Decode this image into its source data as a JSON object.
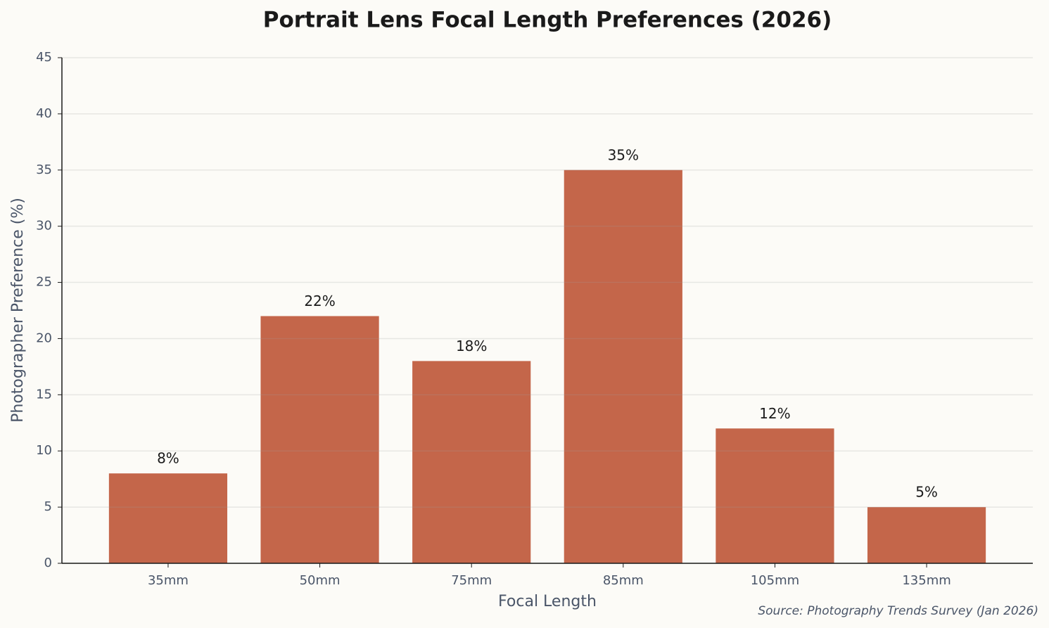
{
  "chart_data": {
    "type": "bar",
    "title": "Portrait Lens Focal Length Preferences (2026)",
    "x_label": "Focal Length",
    "y_label": "Photographer Preference (%)",
    "source": "Source: Photography Trends Survey (Jan 2026)",
    "categories": [
      "35mm",
      "50mm",
      "75mm",
      "85mm",
      "105mm",
      "135mm"
    ],
    "values": [
      8,
      22,
      18,
      35,
      12,
      5
    ],
    "value_labels": [
      "8%",
      "22%",
      "18%",
      "35%",
      "12%",
      "5%"
    ],
    "color": "#c4664a",
    "ylim": [
      0,
      45
    ],
    "yticks": [
      0,
      5,
      10,
      15,
      20,
      25,
      30,
      35,
      40,
      45
    ],
    "grid": true
  }
}
